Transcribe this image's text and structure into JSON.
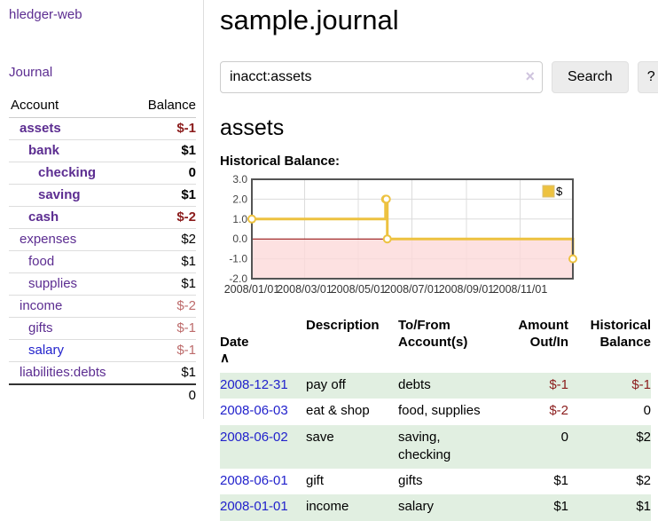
{
  "brand": "hledger-web",
  "sidebar": {
    "journal_link": "Journal",
    "table": {
      "headers": {
        "account": "Account",
        "balance": "Balance"
      },
      "accounts": [
        {
          "name": "assets",
          "balance": "$-1"
        },
        {
          "name": "bank",
          "balance": "$1"
        },
        {
          "name": "checking",
          "balance": "0"
        },
        {
          "name": "saving",
          "balance": "$1"
        },
        {
          "name": "cash",
          "balance": "$-2"
        },
        {
          "name": "expenses",
          "balance": "$2"
        },
        {
          "name": "food",
          "balance": "$1"
        },
        {
          "name": "supplies",
          "balance": "$1"
        },
        {
          "name": "income",
          "balance": "$-2"
        },
        {
          "name": "gifts",
          "balance": "$-1"
        },
        {
          "name": "salary",
          "balance": "$-1"
        },
        {
          "name": "liabilities:debts",
          "balance": "$1"
        }
      ],
      "total": "0"
    }
  },
  "header": {
    "title": "sample.journal"
  },
  "search": {
    "value": "inacct:assets",
    "clear_icon": "×",
    "button_label": "Search",
    "help_label": "?"
  },
  "account_page": {
    "heading": "assets",
    "chart_label": "Historical Balance:"
  },
  "chart_data": {
    "type": "line",
    "title": "Historical Balance",
    "steps": true,
    "series": [
      {
        "name": "$",
        "color": "#edc240",
        "points": [
          [
            "2008-01-01",
            1
          ],
          [
            "2008-06-01",
            2
          ],
          [
            "2008-06-02",
            2
          ],
          [
            "2008-06-03",
            0
          ],
          [
            "2008-12-31",
            -1
          ]
        ]
      }
    ],
    "x_range": [
      "2008-01-01",
      "2008-12-31"
    ],
    "ylim": [
      -2,
      3
    ],
    "x_ticks": [
      "2008/01/01",
      "2008/03/01",
      "2008/05/01",
      "2008/07/01",
      "2008/09/01",
      "2008/11/01"
    ],
    "y_ticks": [
      "3.0",
      "2.0",
      "1.0",
      "0.0",
      "-1.0",
      "-2.0"
    ],
    "legend": {
      "label": "$",
      "position": "top-right"
    },
    "grid": true,
    "negative_region_color": "#fcdada",
    "zero_line_color": "#8b0000",
    "border_color": "#545454"
  },
  "register": {
    "headers": {
      "date": "Date",
      "sort_icon": "∧",
      "description": "Description",
      "accounts": "To/From\nAccount(s)",
      "amount": "Amount\nOut/In",
      "balance": "Historical\nBalance"
    },
    "rows": [
      {
        "date": "2008-12-31",
        "description": "pay off",
        "accounts": "debts",
        "amount": "$-1",
        "balance": "$-1"
      },
      {
        "date": "2008-06-03",
        "description": "eat & shop",
        "accounts": "food, supplies",
        "amount": "$-2",
        "balance": "0"
      },
      {
        "date": "2008-06-02",
        "description": "save",
        "accounts": "saving,\nchecking",
        "amount": "0",
        "balance": "$2"
      },
      {
        "date": "2008-06-01",
        "description": "gift",
        "accounts": "gifts",
        "amount": "$1",
        "balance": "$2"
      },
      {
        "date": "2008-01-01",
        "description": "income",
        "accounts": "salary",
        "amount": "$1",
        "balance": "$1"
      }
    ]
  },
  "colors": {
    "accent_purple": "#5c2d91",
    "link_blue": "#2222cc",
    "negative_dark": "#8b1c1c",
    "negative_light": "#bd6b6b",
    "row_stripe_green": "#e1efe1",
    "chart_line_gold": "#edc240",
    "chart_negative_bg": "#fcdada",
    "chart_zero_line": "#8b0000"
  }
}
